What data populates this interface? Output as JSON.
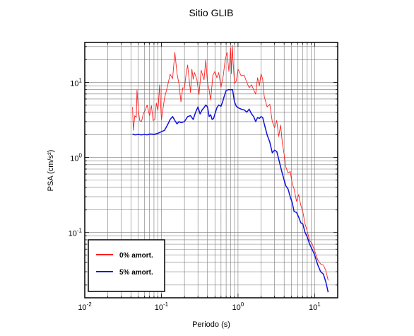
{
  "chart_data": {
    "type": "line",
    "title": "Sitio GLIB",
    "xlabel": "Periodo (s)",
    "ylabel": "PSA (cm/s²)",
    "xscale": "log",
    "yscale": "log",
    "xlim": [
      0.01,
      20
    ],
    "ylim": [
      0.0135,
      34
    ],
    "xticks": [
      {
        "value": 0.01,
        "base": "10",
        "exp": "-2"
      },
      {
        "value": 0.1,
        "base": "10",
        "exp": "-1"
      },
      {
        "value": 1,
        "base": "10",
        "exp": "0"
      },
      {
        "value": 10,
        "base": "10",
        "exp": "1"
      }
    ],
    "yticks": [
      {
        "value": 0.1,
        "base": "10",
        "exp": "-1"
      },
      {
        "value": 1,
        "base": "10",
        "exp": "0"
      },
      {
        "value": 10,
        "base": "10",
        "exp": "1"
      }
    ],
    "grid": true,
    "legend_position": "bottom-left",
    "series": [
      {
        "name": "0% amort.",
        "color": "#ff2020",
        "points": [
          [
            0.042,
            4.7
          ],
          [
            0.043,
            2.3
          ],
          [
            0.045,
            3.6
          ],
          [
            0.047,
            3.4
          ],
          [
            0.048,
            7.9
          ],
          [
            0.05,
            4.4
          ],
          [
            0.052,
            3.1
          ],
          [
            0.055,
            3.0
          ],
          [
            0.058,
            3.8
          ],
          [
            0.062,
            4.3
          ],
          [
            0.065,
            5.0
          ],
          [
            0.07,
            3.6
          ],
          [
            0.074,
            4.9
          ],
          [
            0.078,
            3.1
          ],
          [
            0.082,
            3.2
          ],
          [
            0.086,
            5.3
          ],
          [
            0.09,
            4.2
          ],
          [
            0.095,
            9.3
          ],
          [
            0.1,
            3.2
          ],
          [
            0.11,
            6.2
          ],
          [
            0.115,
            7.4
          ],
          [
            0.12,
            8.8
          ],
          [
            0.13,
            12.8
          ],
          [
            0.14,
            11.2
          ],
          [
            0.15,
            25.0
          ],
          [
            0.16,
            13.0
          ],
          [
            0.17,
            9.5
          ],
          [
            0.18,
            5.5
          ],
          [
            0.19,
            8.5
          ],
          [
            0.2,
            8.3
          ],
          [
            0.21,
            13.0
          ],
          [
            0.22,
            17.0
          ],
          [
            0.24,
            7.3
          ],
          [
            0.25,
            15.0
          ],
          [
            0.26,
            11.0
          ],
          [
            0.27,
            13.5
          ],
          [
            0.29,
            11.0
          ],
          [
            0.31,
            6.9
          ],
          [
            0.33,
            14.5
          ],
          [
            0.36,
            10.8
          ],
          [
            0.38,
            20.0
          ],
          [
            0.4,
            9.8
          ],
          [
            0.42,
            8.0
          ],
          [
            0.44,
            5.8
          ],
          [
            0.47,
            12.5
          ],
          [
            0.5,
            14.0
          ],
          [
            0.53,
            11.5
          ],
          [
            0.56,
            13.5
          ],
          [
            0.6,
            8.6
          ],
          [
            0.64,
            12.0
          ],
          [
            0.68,
            20.0
          ],
          [
            0.72,
            25.0
          ],
          [
            0.76,
            14.0
          ],
          [
            0.8,
            28.5
          ],
          [
            0.82,
            13.0
          ],
          [
            0.84,
            31.0
          ],
          [
            0.86,
            20.0
          ],
          [
            0.9,
            9.6
          ],
          [
            0.95,
            10.5
          ],
          [
            1.0,
            15.0
          ],
          [
            1.1,
            12.2
          ],
          [
            1.2,
            12.5
          ],
          [
            1.3,
            10.0
          ],
          [
            1.4,
            8.5
          ],
          [
            1.5,
            9.3
          ],
          [
            1.6,
            8.0
          ],
          [
            1.7,
            7.0
          ],
          [
            1.8,
            11.5
          ],
          [
            1.9,
            9.0
          ],
          [
            2.0,
            13.0
          ],
          [
            2.1,
            11.0
          ],
          [
            2.2,
            6.5
          ],
          [
            2.4,
            4.7
          ],
          [
            2.6,
            5.1
          ],
          [
            2.8,
            3.0
          ],
          [
            3.0,
            2.5
          ],
          [
            3.2,
            3.1
          ],
          [
            3.4,
            1.9
          ],
          [
            3.6,
            2.7
          ],
          [
            3.8,
            1.5
          ],
          [
            4.0,
            1.1
          ],
          [
            4.2,
            0.75
          ],
          [
            4.5,
            0.62
          ],
          [
            4.8,
            0.65
          ],
          [
            5.1,
            0.45
          ],
          [
            5.4,
            0.38
          ],
          [
            5.8,
            0.26
          ],
          [
            6.2,
            0.32
          ],
          [
            6.6,
            0.23
          ],
          [
            7.0,
            0.19
          ],
          [
            7.5,
            0.13
          ],
          [
            8.0,
            0.105
          ],
          [
            8.6,
            0.078
          ],
          [
            9.2,
            0.072
          ],
          [
            10.0,
            0.057
          ],
          [
            11.0,
            0.043
          ],
          [
            12.0,
            0.038
          ],
          [
            13.0,
            0.037
          ],
          [
            14.0,
            0.031
          ],
          [
            15.0,
            0.023
          ]
        ]
      },
      {
        "name": "5% amort.",
        "color": "#1010e0",
        "points": [
          [
            0.042,
            2.05
          ],
          [
            0.045,
            2.0
          ],
          [
            0.05,
            2.02
          ],
          [
            0.055,
            2.0
          ],
          [
            0.06,
            2.02
          ],
          [
            0.065,
            2.0
          ],
          [
            0.07,
            2.05
          ],
          [
            0.075,
            2.05
          ],
          [
            0.08,
            2.02
          ],
          [
            0.09,
            2.1
          ],
          [
            0.1,
            2.2
          ],
          [
            0.11,
            2.3
          ],
          [
            0.12,
            2.7
          ],
          [
            0.13,
            3.2
          ],
          [
            0.14,
            3.5
          ],
          [
            0.15,
            3.1
          ],
          [
            0.16,
            2.8
          ],
          [
            0.17,
            3.0
          ],
          [
            0.18,
            2.9
          ],
          [
            0.2,
            3.0
          ],
          [
            0.22,
            3.5
          ],
          [
            0.24,
            3.6
          ],
          [
            0.26,
            3.2
          ],
          [
            0.28,
            4.0
          ],
          [
            0.3,
            4.7
          ],
          [
            0.32,
            3.8
          ],
          [
            0.34,
            4.3
          ],
          [
            0.36,
            4.6
          ],
          [
            0.38,
            5.0
          ],
          [
            0.4,
            4.7
          ],
          [
            0.42,
            3.5
          ],
          [
            0.44,
            3.7
          ],
          [
            0.46,
            3.2
          ],
          [
            0.48,
            3.3
          ],
          [
            0.5,
            3.8
          ],
          [
            0.53,
            4.6
          ],
          [
            0.56,
            5.0
          ],
          [
            0.6,
            4.8
          ],
          [
            0.63,
            5.5
          ],
          [
            0.66,
            6.5
          ],
          [
            0.7,
            7.8
          ],
          [
            0.75,
            8.0
          ],
          [
            0.8,
            8.0
          ],
          [
            0.85,
            8.0
          ],
          [
            0.9,
            5.5
          ],
          [
            0.95,
            4.8
          ],
          [
            1.0,
            4.6
          ],
          [
            1.1,
            4.4
          ],
          [
            1.2,
            4.3
          ],
          [
            1.3,
            4.0
          ],
          [
            1.4,
            4.4
          ],
          [
            1.5,
            3.8
          ],
          [
            1.6,
            3.5
          ],
          [
            1.7,
            3.0
          ],
          [
            1.8,
            3.4
          ],
          [
            1.9,
            3.3
          ],
          [
            2.0,
            3.5
          ],
          [
            2.1,
            3.4
          ],
          [
            2.2,
            2.8
          ],
          [
            2.4,
            2.0
          ],
          [
            2.6,
            1.6
          ],
          [
            2.8,
            1.15
          ],
          [
            3.0,
            1.25
          ],
          [
            3.2,
            1.2
          ],
          [
            3.4,
            0.95
          ],
          [
            3.6,
            0.75
          ],
          [
            3.8,
            0.6
          ],
          [
            4.0,
            0.5
          ],
          [
            4.2,
            0.42
          ],
          [
            4.5,
            0.38
          ],
          [
            4.8,
            0.3
          ],
          [
            5.1,
            0.25
          ],
          [
            5.4,
            0.19
          ],
          [
            5.8,
            0.185
          ],
          [
            6.2,
            0.16
          ],
          [
            6.6,
            0.135
          ],
          [
            7.0,
            0.13
          ],
          [
            7.5,
            0.1
          ],
          [
            8.0,
            0.088
          ],
          [
            8.6,
            0.07
          ],
          [
            9.2,
            0.061
          ],
          [
            10.0,
            0.05
          ],
          [
            11.0,
            0.037
          ],
          [
            12.0,
            0.03
          ],
          [
            13.0,
            0.028
          ],
          [
            14.0,
            0.022
          ],
          [
            15.0,
            0.016
          ]
        ]
      }
    ]
  }
}
